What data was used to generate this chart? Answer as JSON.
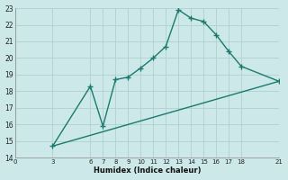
{
  "xlabel": "Humidex (Indice chaleur)",
  "bg_color": "#cce8e8",
  "grid_color": "#b0cfcf",
  "line_color": "#1a7a6e",
  "xlim": [
    0,
    21
  ],
  "ylim": [
    14,
    23
  ],
  "xticks": [
    0,
    3,
    6,
    7,
    8,
    9,
    10,
    11,
    12,
    13,
    14,
    15,
    16,
    17,
    18,
    21
  ],
  "yticks": [
    14,
    15,
    16,
    17,
    18,
    19,
    20,
    21,
    22,
    23
  ],
  "line1_x": [
    3,
    6,
    7,
    8,
    9,
    10,
    11,
    12,
    13,
    14,
    15,
    16,
    17,
    18,
    21
  ],
  "line1_y": [
    14.7,
    18.3,
    15.9,
    18.7,
    18.85,
    19.4,
    20.0,
    20.7,
    22.9,
    22.4,
    22.2,
    21.4,
    20.4,
    19.5,
    18.6
  ],
  "line2_x": [
    3,
    21
  ],
  "line2_y": [
    14.7,
    18.6
  ],
  "marker": "+",
  "markersize": 4,
  "markeredgewidth": 1.0,
  "linewidth": 1.0
}
